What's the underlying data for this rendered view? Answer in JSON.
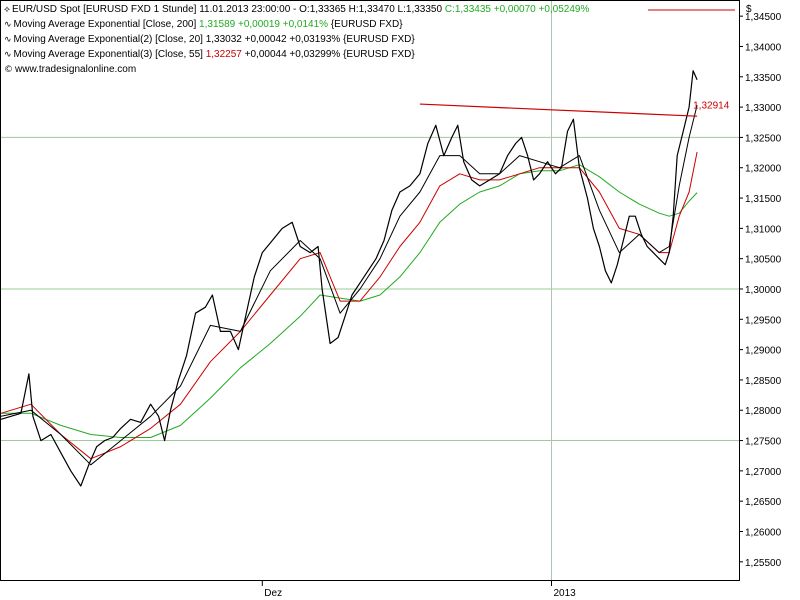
{
  "header": {
    "symbol_line_prefix": "EUR/USD Spot [EURUSD FXD  1 Stunde] 11.01.2013 23:00:00 - O:1,33365 H:1,33470 L:1,33350",
    "symbol_line_close": "C:1,33435 +0,00070 +0,05249%",
    "ema200_prefix": "Moving Average Exponential [Close, 200]",
    "ema200_values": "1,31589 +0,00019 +0,0141%",
    "ema200_suffix": "{EURUSD FXD}",
    "ema20_prefix": "Moving Average Exponential(2) [Close, 20]",
    "ema20_values": "1,33032 +0,00042 +0,03193%",
    "ema20_suffix": "{EURUSD FXD}",
    "ema55_prefix": "Moving Average Exponential(3) [Close, 55]",
    "ema55_values": "1,32257",
    "ema55_rest": "+0,00044 +0,03299% {EURUSD FXD}",
    "copyright": "www.tradesignalonline.com",
    "currency_symbol": "$"
  },
  "colors": {
    "price": "#000000",
    "ema200": "#22aa22",
    "ema20": "#000000",
    "ema55": "#cc0000",
    "trendline": "#cc0000",
    "grid_major": "#9acd9a",
    "grid_vertical": "#b0c4b0"
  },
  "chart_data": {
    "type": "line",
    "title": "EUR/USD Spot [EURUSD FXD  1 Stunde]",
    "ylim": [
      1.252,
      1.3475
    ],
    "y_ticks": [
      1.255,
      1.26,
      1.265,
      1.27,
      1.275,
      1.28,
      1.285,
      1.29,
      1.295,
      1.3,
      1.305,
      1.31,
      1.315,
      1.32,
      1.325,
      1.33,
      1.335,
      1.34,
      1.345
    ],
    "y_tick_labels": [
      "1,25500",
      "1,26000",
      "1,26500",
      "1,27000",
      "1,27500",
      "1,28000",
      "1,28500",
      "1,29000",
      "1,29500",
      "1,30000",
      "1,30500",
      "1,31000",
      "1,31500",
      "1,32000",
      "1,32500",
      "1,33000",
      "1,33500",
      "1,34000",
      "1,34500"
    ],
    "horizontal_gridlines": [
      1.275,
      1.3,
      1.325
    ],
    "x_range": [
      0,
      740
    ],
    "x_ticks": [
      {
        "x": 262,
        "label": "Dez"
      },
      {
        "x": 552,
        "label": "2013"
      }
    ],
    "series": [
      {
        "name": "EUR/USD Spot",
        "points": [
          [
            0,
            1.2785
          ],
          [
            10,
            1.279
          ],
          [
            20,
            1.2795
          ],
          [
            28,
            1.286
          ],
          [
            32,
            1.279
          ],
          [
            40,
            1.275
          ],
          [
            50,
            1.276
          ],
          [
            60,
            1.273
          ],
          [
            70,
            1.27
          ],
          [
            80,
            1.2675
          ],
          [
            88,
            1.271
          ],
          [
            96,
            1.274
          ],
          [
            104,
            1.275
          ],
          [
            112,
            1.2755
          ],
          [
            120,
            1.277
          ],
          [
            130,
            1.2785
          ],
          [
            140,
            1.278
          ],
          [
            150,
            1.281
          ],
          [
            158,
            1.279
          ],
          [
            164,
            1.275
          ],
          [
            170,
            1.28
          ],
          [
            178,
            1.285
          ],
          [
            186,
            1.289
          ],
          [
            195,
            1.296
          ],
          [
            205,
            1.297
          ],
          [
            212,
            1.299
          ],
          [
            220,
            1.293
          ],
          [
            230,
            1.293
          ],
          [
            238,
            1.29
          ],
          [
            246,
            1.296
          ],
          [
            254,
            1.302
          ],
          [
            262,
            1.306
          ],
          [
            272,
            1.308
          ],
          [
            282,
            1.31
          ],
          [
            292,
            1.311
          ],
          [
            300,
            1.307
          ],
          [
            310,
            1.306
          ],
          [
            318,
            1.307
          ],
          [
            322,
            1.3
          ],
          [
            330,
            1.291
          ],
          [
            338,
            1.292
          ],
          [
            346,
            1.296
          ],
          [
            352,
            1.299
          ],
          [
            360,
            1.301
          ],
          [
            368,
            1.303
          ],
          [
            376,
            1.305
          ],
          [
            384,
            1.308
          ],
          [
            392,
            1.313
          ],
          [
            400,
            1.316
          ],
          [
            410,
            1.317
          ],
          [
            420,
            1.319
          ],
          [
            428,
            1.324
          ],
          [
            436,
            1.327
          ],
          [
            444,
            1.322
          ],
          [
            452,
            1.325
          ],
          [
            458,
            1.327
          ],
          [
            464,
            1.321
          ],
          [
            472,
            1.318
          ],
          [
            480,
            1.317
          ],
          [
            490,
            1.318
          ],
          [
            500,
            1.319
          ],
          [
            508,
            1.322
          ],
          [
            516,
            1.324
          ],
          [
            522,
            1.325
          ],
          [
            528,
            1.322
          ],
          [
            534,
            1.318
          ],
          [
            540,
            1.319
          ],
          [
            548,
            1.321
          ],
          [
            556,
            1.319
          ],
          [
            562,
            1.32
          ],
          [
            568,
            1.326
          ],
          [
            574,
            1.328
          ],
          [
            580,
            1.32
          ],
          [
            588,
            1.315
          ],
          [
            594,
            1.31
          ],
          [
            600,
            1.307
          ],
          [
            606,
            1.303
          ],
          [
            612,
            1.301
          ],
          [
            618,
            1.304
          ],
          [
            624,
            1.308
          ],
          [
            630,
            1.312
          ],
          [
            636,
            1.312
          ],
          [
            642,
            1.309
          ],
          [
            648,
            1.307
          ],
          [
            654,
            1.306
          ],
          [
            660,
            1.305
          ],
          [
            666,
            1.304
          ],
          [
            670,
            1.306
          ],
          [
            674,
            1.312
          ],
          [
            678,
            1.322
          ],
          [
            684,
            1.326
          ],
          [
            690,
            1.33
          ],
          [
            694,
            1.336
          ],
          [
            698,
            1.3345
          ]
        ]
      },
      {
        "name": "Moving Average Exponential(2) [Close, 20]",
        "points": [
          [
            0,
            1.279
          ],
          [
            30,
            1.28
          ],
          [
            60,
            1.276
          ],
          [
            90,
            1.271
          ],
          [
            120,
            1.275
          ],
          [
            150,
            1.279
          ],
          [
            180,
            1.284
          ],
          [
            210,
            1.294
          ],
          [
            240,
            1.293
          ],
          [
            270,
            1.303
          ],
          [
            300,
            1.308
          ],
          [
            320,
            1.305
          ],
          [
            340,
            1.296
          ],
          [
            360,
            1.3
          ],
          [
            380,
            1.305
          ],
          [
            400,
            1.312
          ],
          [
            420,
            1.316
          ],
          [
            440,
            1.322
          ],
          [
            460,
            1.322
          ],
          [
            480,
            1.319
          ],
          [
            500,
            1.319
          ],
          [
            520,
            1.322
          ],
          [
            540,
            1.321
          ],
          [
            560,
            1.32
          ],
          [
            580,
            1.322
          ],
          [
            600,
            1.313
          ],
          [
            620,
            1.306
          ],
          [
            640,
            1.309
          ],
          [
            660,
            1.306
          ],
          [
            670,
            1.307
          ],
          [
            680,
            1.317
          ],
          [
            690,
            1.325
          ],
          [
            698,
            1.3303
          ]
        ]
      },
      {
        "name": "Moving Average Exponential(3) [Close, 55]",
        "points": [
          [
            0,
            1.2795
          ],
          [
            30,
            1.281
          ],
          [
            60,
            1.276
          ],
          [
            90,
            1.272
          ],
          [
            120,
            1.274
          ],
          [
            150,
            1.277
          ],
          [
            180,
            1.281
          ],
          [
            210,
            1.288
          ],
          [
            240,
            1.293
          ],
          [
            270,
            1.299
          ],
          [
            300,
            1.305
          ],
          [
            320,
            1.306
          ],
          [
            340,
            1.298
          ],
          [
            360,
            1.298
          ],
          [
            380,
            1.302
          ],
          [
            400,
            1.307
          ],
          [
            420,
            1.311
          ],
          [
            440,
            1.317
          ],
          [
            460,
            1.319
          ],
          [
            480,
            1.318
          ],
          [
            500,
            1.318
          ],
          [
            520,
            1.319
          ],
          [
            540,
            1.32
          ],
          [
            560,
            1.32
          ],
          [
            580,
            1.32
          ],
          [
            600,
            1.316
          ],
          [
            620,
            1.31
          ],
          [
            640,
            1.309
          ],
          [
            660,
            1.306
          ],
          [
            670,
            1.306
          ],
          [
            680,
            1.312
          ],
          [
            690,
            1.316
          ],
          [
            698,
            1.3226
          ]
        ]
      },
      {
        "name": "Moving Average Exponential [Close, 200]",
        "points": [
          [
            0,
            1.2795
          ],
          [
            30,
            1.2795
          ],
          [
            60,
            1.2775
          ],
          [
            90,
            1.276
          ],
          [
            120,
            1.2755
          ],
          [
            150,
            1.2755
          ],
          [
            180,
            1.2775
          ],
          [
            210,
            1.282
          ],
          [
            240,
            1.287
          ],
          [
            270,
            1.291
          ],
          [
            300,
            1.2955
          ],
          [
            320,
            1.299
          ],
          [
            340,
            1.2985
          ],
          [
            360,
            1.298
          ],
          [
            380,
            1.299
          ],
          [
            400,
            1.302
          ],
          [
            420,
            1.306
          ],
          [
            440,
            1.311
          ],
          [
            460,
            1.314
          ],
          [
            480,
            1.316
          ],
          [
            500,
            1.317
          ],
          [
            520,
            1.319
          ],
          [
            540,
            1.3195
          ],
          [
            560,
            1.3195
          ],
          [
            580,
            1.3205
          ],
          [
            600,
            1.3185
          ],
          [
            620,
            1.316
          ],
          [
            640,
            1.314
          ],
          [
            660,
            1.3125
          ],
          [
            670,
            1.312
          ],
          [
            680,
            1.3125
          ],
          [
            690,
            1.3145
          ],
          [
            698,
            1.3159
          ]
        ]
      }
    ],
    "trendline": {
      "points": [
        [
          420,
          1.3305
        ],
        [
          698,
          1.3285
        ]
      ]
    },
    "annotations": [
      {
        "label": "1,32914",
        "value": 1.32914
      }
    ]
  }
}
